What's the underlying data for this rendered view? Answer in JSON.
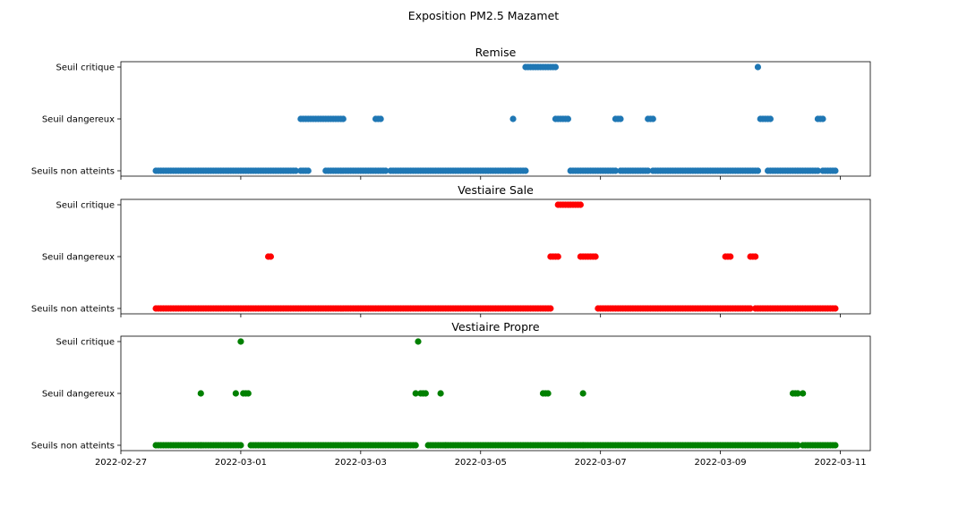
{
  "title": "Exposition PM2.5 Mazamet",
  "x_ticks": [
    "2022-02-27",
    "2022-03-01",
    "2022-03-03",
    "2022-03-05",
    "2022-03-07",
    "2022-03-09",
    "2022-03-11"
  ],
  "y_categories": [
    "Seuils non atteints",
    "Seuil dangereux",
    "Seuil critique"
  ],
  "chart_data": [
    {
      "type": "scatter",
      "title": "Remise",
      "color": "#1f77b4",
      "xlim": [
        "2022-02-27T00:00",
        "2022-03-11T12:00"
      ],
      "segments": [
        {
          "level": 0,
          "start": "2022-02-27T14:00",
          "end": "2022-03-01T22:00"
        },
        {
          "level": 0,
          "start": "2022-03-02T00:00",
          "end": "2022-03-02T03:00"
        },
        {
          "level": 0,
          "start": "2022-03-02T10:00",
          "end": "2022-03-03T10:00"
        },
        {
          "level": 0,
          "start": "2022-03-03T12:00",
          "end": "2022-03-05T12:00"
        },
        {
          "level": 0,
          "start": "2022-03-05T12:00",
          "end": "2022-03-05T18:00"
        },
        {
          "level": 0,
          "start": "2022-03-06T12:00",
          "end": "2022-03-07T06:00"
        },
        {
          "level": 0,
          "start": "2022-03-07T08:00",
          "end": "2022-03-07T19:00"
        },
        {
          "level": 0,
          "start": "2022-03-07T21:00",
          "end": "2022-03-09T15:00"
        },
        {
          "level": 0,
          "start": "2022-03-09T19:00",
          "end": "2022-03-10T15:00"
        },
        {
          "level": 0,
          "start": "2022-03-10T17:00",
          "end": "2022-03-10T22:00"
        },
        {
          "level": 1,
          "start": "2022-03-02T00:00",
          "end": "2022-03-02T05:00"
        },
        {
          "level": 1,
          "start": "2022-03-02T06:00",
          "end": "2022-03-02T17:00"
        },
        {
          "level": 1,
          "start": "2022-03-03T06:00",
          "end": "2022-03-03T08:00"
        },
        {
          "level": 1,
          "start": "2022-03-05T13:00",
          "end": "2022-03-05T13:00"
        },
        {
          "level": 1,
          "start": "2022-03-06T06:00",
          "end": "2022-03-06T11:00"
        },
        {
          "level": 1,
          "start": "2022-03-07T06:00",
          "end": "2022-03-07T08:00"
        },
        {
          "level": 1,
          "start": "2022-03-07T19:00",
          "end": "2022-03-07T21:00"
        },
        {
          "level": 1,
          "start": "2022-03-09T16:00",
          "end": "2022-03-09T20:00"
        },
        {
          "level": 1,
          "start": "2022-03-10T15:00",
          "end": "2022-03-10T17:00"
        },
        {
          "level": 2,
          "start": "2022-03-05T18:00",
          "end": "2022-03-06T06:00"
        },
        {
          "level": 2,
          "start": "2022-03-09T15:00",
          "end": "2022-03-09T15:00"
        }
      ]
    },
    {
      "type": "scatter",
      "title": "Vestiaire Sale",
      "color": "#ff0000",
      "xlim": [
        "2022-02-27T00:00",
        "2022-03-11T12:00"
      ],
      "segments": [
        {
          "level": 0,
          "start": "2022-02-27T14:00",
          "end": "2022-03-01T12:00"
        },
        {
          "level": 0,
          "start": "2022-03-01T13:00",
          "end": "2022-03-06T04:00"
        },
        {
          "level": 0,
          "start": "2022-03-06T23:00",
          "end": "2022-03-09T02:00"
        },
        {
          "level": 0,
          "start": "2022-03-09T03:00",
          "end": "2022-03-09T12:00"
        },
        {
          "level": 0,
          "start": "2022-03-09T14:00",
          "end": "2022-03-10T22:00"
        },
        {
          "level": 1,
          "start": "2022-03-01T11:00",
          "end": "2022-03-01T12:00"
        },
        {
          "level": 1,
          "start": "2022-03-06T04:00",
          "end": "2022-03-06T07:00"
        },
        {
          "level": 1,
          "start": "2022-03-06T16:00",
          "end": "2022-03-06T22:00"
        },
        {
          "level": 1,
          "start": "2022-03-09T02:00",
          "end": "2022-03-09T04:00"
        },
        {
          "level": 1,
          "start": "2022-03-09T12:00",
          "end": "2022-03-09T14:00"
        },
        {
          "level": 2,
          "start": "2022-03-06T07:00",
          "end": "2022-03-06T16:00"
        }
      ]
    },
    {
      "type": "scatter",
      "title": "Vestiaire Propre",
      "color": "#008000",
      "xlim": [
        "2022-02-27T00:00",
        "2022-03-11T12:00"
      ],
      "segments": [
        {
          "level": 0,
          "start": "2022-02-27T14:00",
          "end": "2022-02-28T08:00"
        },
        {
          "level": 0,
          "start": "2022-02-28T08:00",
          "end": "2022-02-28T22:00"
        },
        {
          "level": 0,
          "start": "2022-02-28T23:00",
          "end": "2022-03-01T00:00"
        },
        {
          "level": 0,
          "start": "2022-03-01T04:00",
          "end": "2022-03-03T22:00"
        },
        {
          "level": 0,
          "start": "2022-03-04T03:00",
          "end": "2022-03-04T10:00"
        },
        {
          "level": 0,
          "start": "2022-03-04T10:00",
          "end": "2022-03-06T02:00"
        },
        {
          "level": 0,
          "start": "2022-03-06T03:00",
          "end": "2022-03-06T17:00"
        },
        {
          "level": 0,
          "start": "2022-03-06T17:00",
          "end": "2022-03-10T07:00"
        },
        {
          "level": 0,
          "start": "2022-03-10T09:00",
          "end": "2022-03-10T22:00"
        },
        {
          "level": 1,
          "start": "2022-02-28T08:00",
          "end": "2022-02-28T08:00"
        },
        {
          "level": 1,
          "start": "2022-02-28T22:00",
          "end": "2022-02-28T22:00"
        },
        {
          "level": 1,
          "start": "2022-03-01T01:00",
          "end": "2022-03-01T03:00"
        },
        {
          "level": 1,
          "start": "2022-03-03T22:00",
          "end": "2022-03-03T22:00"
        },
        {
          "level": 1,
          "start": "2022-03-04T00:00",
          "end": "2022-03-04T02:00"
        },
        {
          "level": 1,
          "start": "2022-03-04T08:00",
          "end": "2022-03-04T08:00"
        },
        {
          "level": 1,
          "start": "2022-03-06T01:00",
          "end": "2022-03-06T03:00"
        },
        {
          "level": 1,
          "start": "2022-03-06T17:00",
          "end": "2022-03-06T17:00"
        },
        {
          "level": 1,
          "start": "2022-03-10T05:00",
          "end": "2022-03-10T07:00"
        },
        {
          "level": 1,
          "start": "2022-03-10T09:00",
          "end": "2022-03-10T09:00"
        },
        {
          "level": 2,
          "start": "2022-03-01T00:00",
          "end": "2022-03-01T00:00"
        },
        {
          "level": 2,
          "start": "2022-03-03T23:00",
          "end": "2022-03-03T23:00"
        }
      ]
    }
  ]
}
